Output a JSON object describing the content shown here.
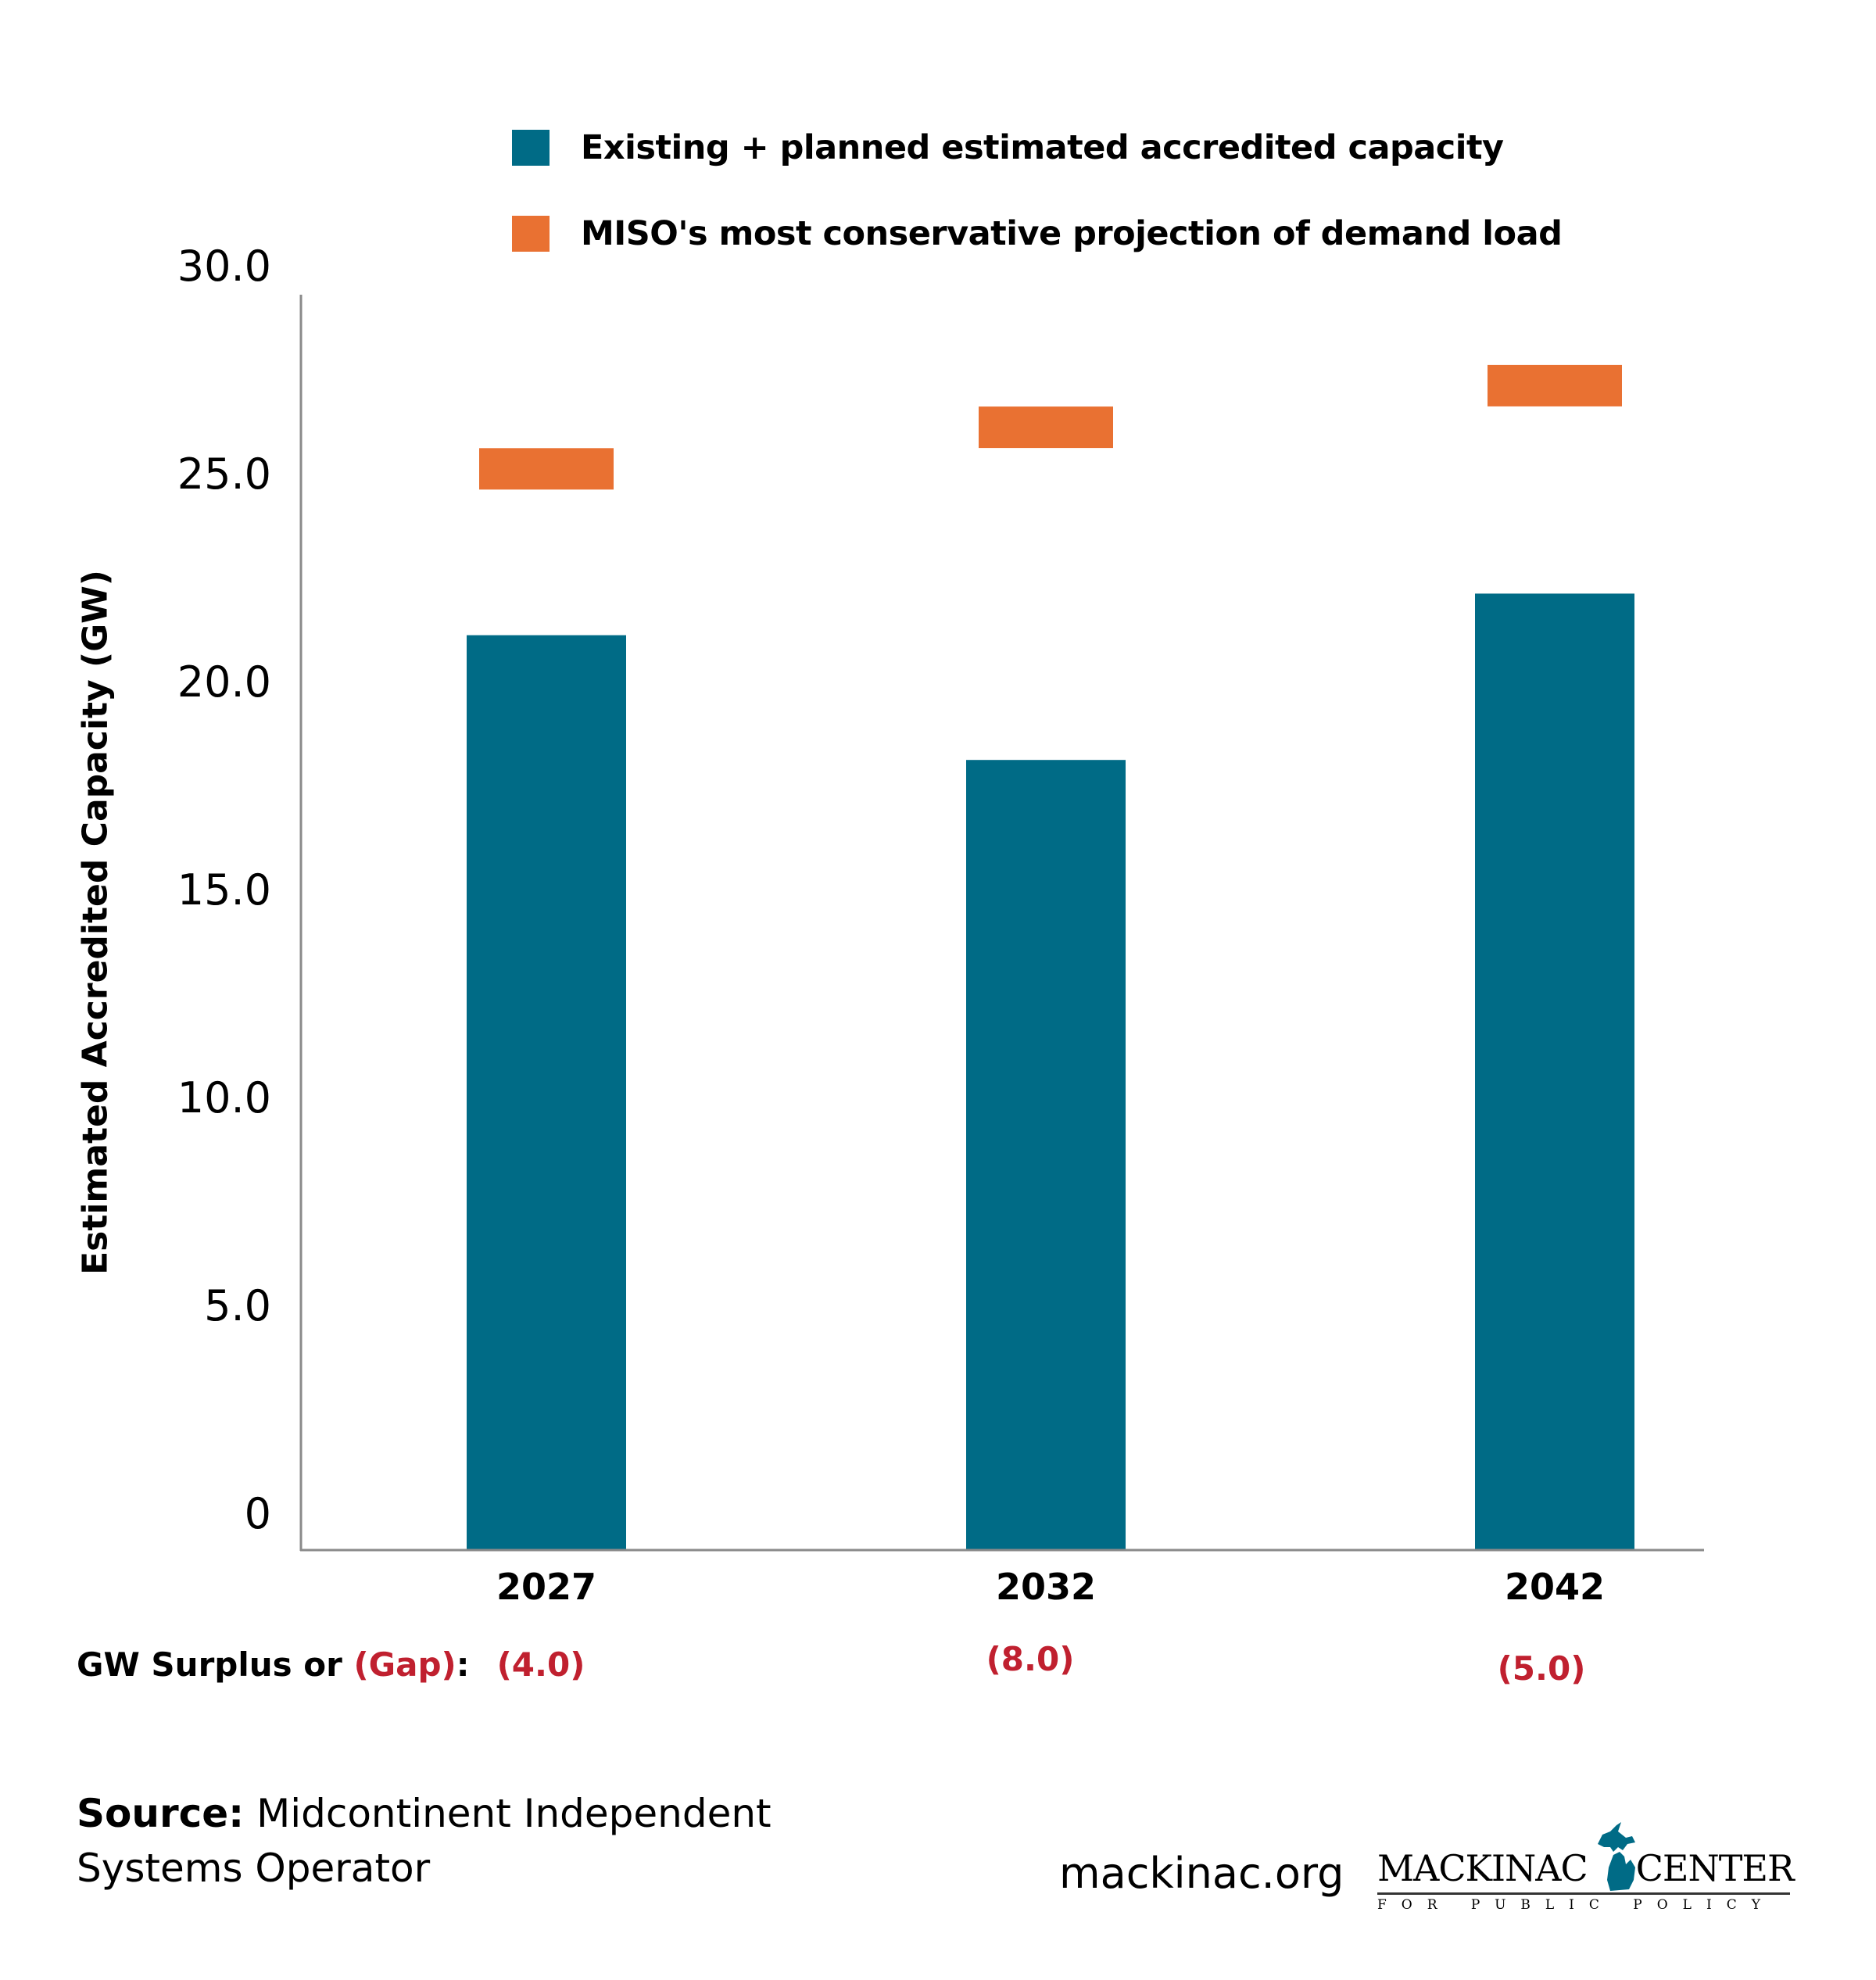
{
  "legend": {
    "items": [
      {
        "label": "Existing + planned estimated accredited capacity",
        "color": "#006b86"
      },
      {
        "label": "MISO's most conservative projection of demand load",
        "color": "#e97132"
      }
    ]
  },
  "chart_data": {
    "type": "bar",
    "title": "",
    "xlabel": "",
    "ylabel": "Estimated Accredited Capacity (GW)",
    "categories": [
      "2027",
      "2032",
      "2042"
    ],
    "ylim": [
      0,
      30
    ],
    "yticks": [
      0,
      5,
      10,
      15,
      20,
      25,
      30
    ],
    "ytick_labels": [
      "0",
      "5.0",
      "10.0",
      "15.0",
      "20.0",
      "25.0",
      "30.0"
    ],
    "grid": false,
    "legend_position": "top",
    "series": [
      {
        "name": "Existing + planned estimated accredited capacity",
        "kind": "bar",
        "color": "#006b86",
        "values": [
          22.0,
          19.0,
          23.0
        ]
      },
      {
        "name": "MISO's most conservative projection of demand load",
        "kind": "marker",
        "color": "#e97132",
        "values": [
          26.0,
          27.0,
          28.0
        ]
      }
    ]
  },
  "gap": {
    "label_prefix": "GW Surplus or ",
    "label_gap": "(Gap)",
    "label_suffix": ":",
    "values": [
      "(4.0)",
      "(8.0)",
      "(5.0)"
    ],
    "color": "#c0202f"
  },
  "footer": {
    "source_label": "Source:",
    "source_text_line1": " Midcontinent Independent",
    "source_text_line2": "Systems Operator",
    "website": "mackinac.org",
    "logo_left": "MACKINAC",
    "logo_right": "CENTER",
    "logo_sub": "FOR PUBLIC POLICY",
    "logo_color": "#006b86"
  }
}
